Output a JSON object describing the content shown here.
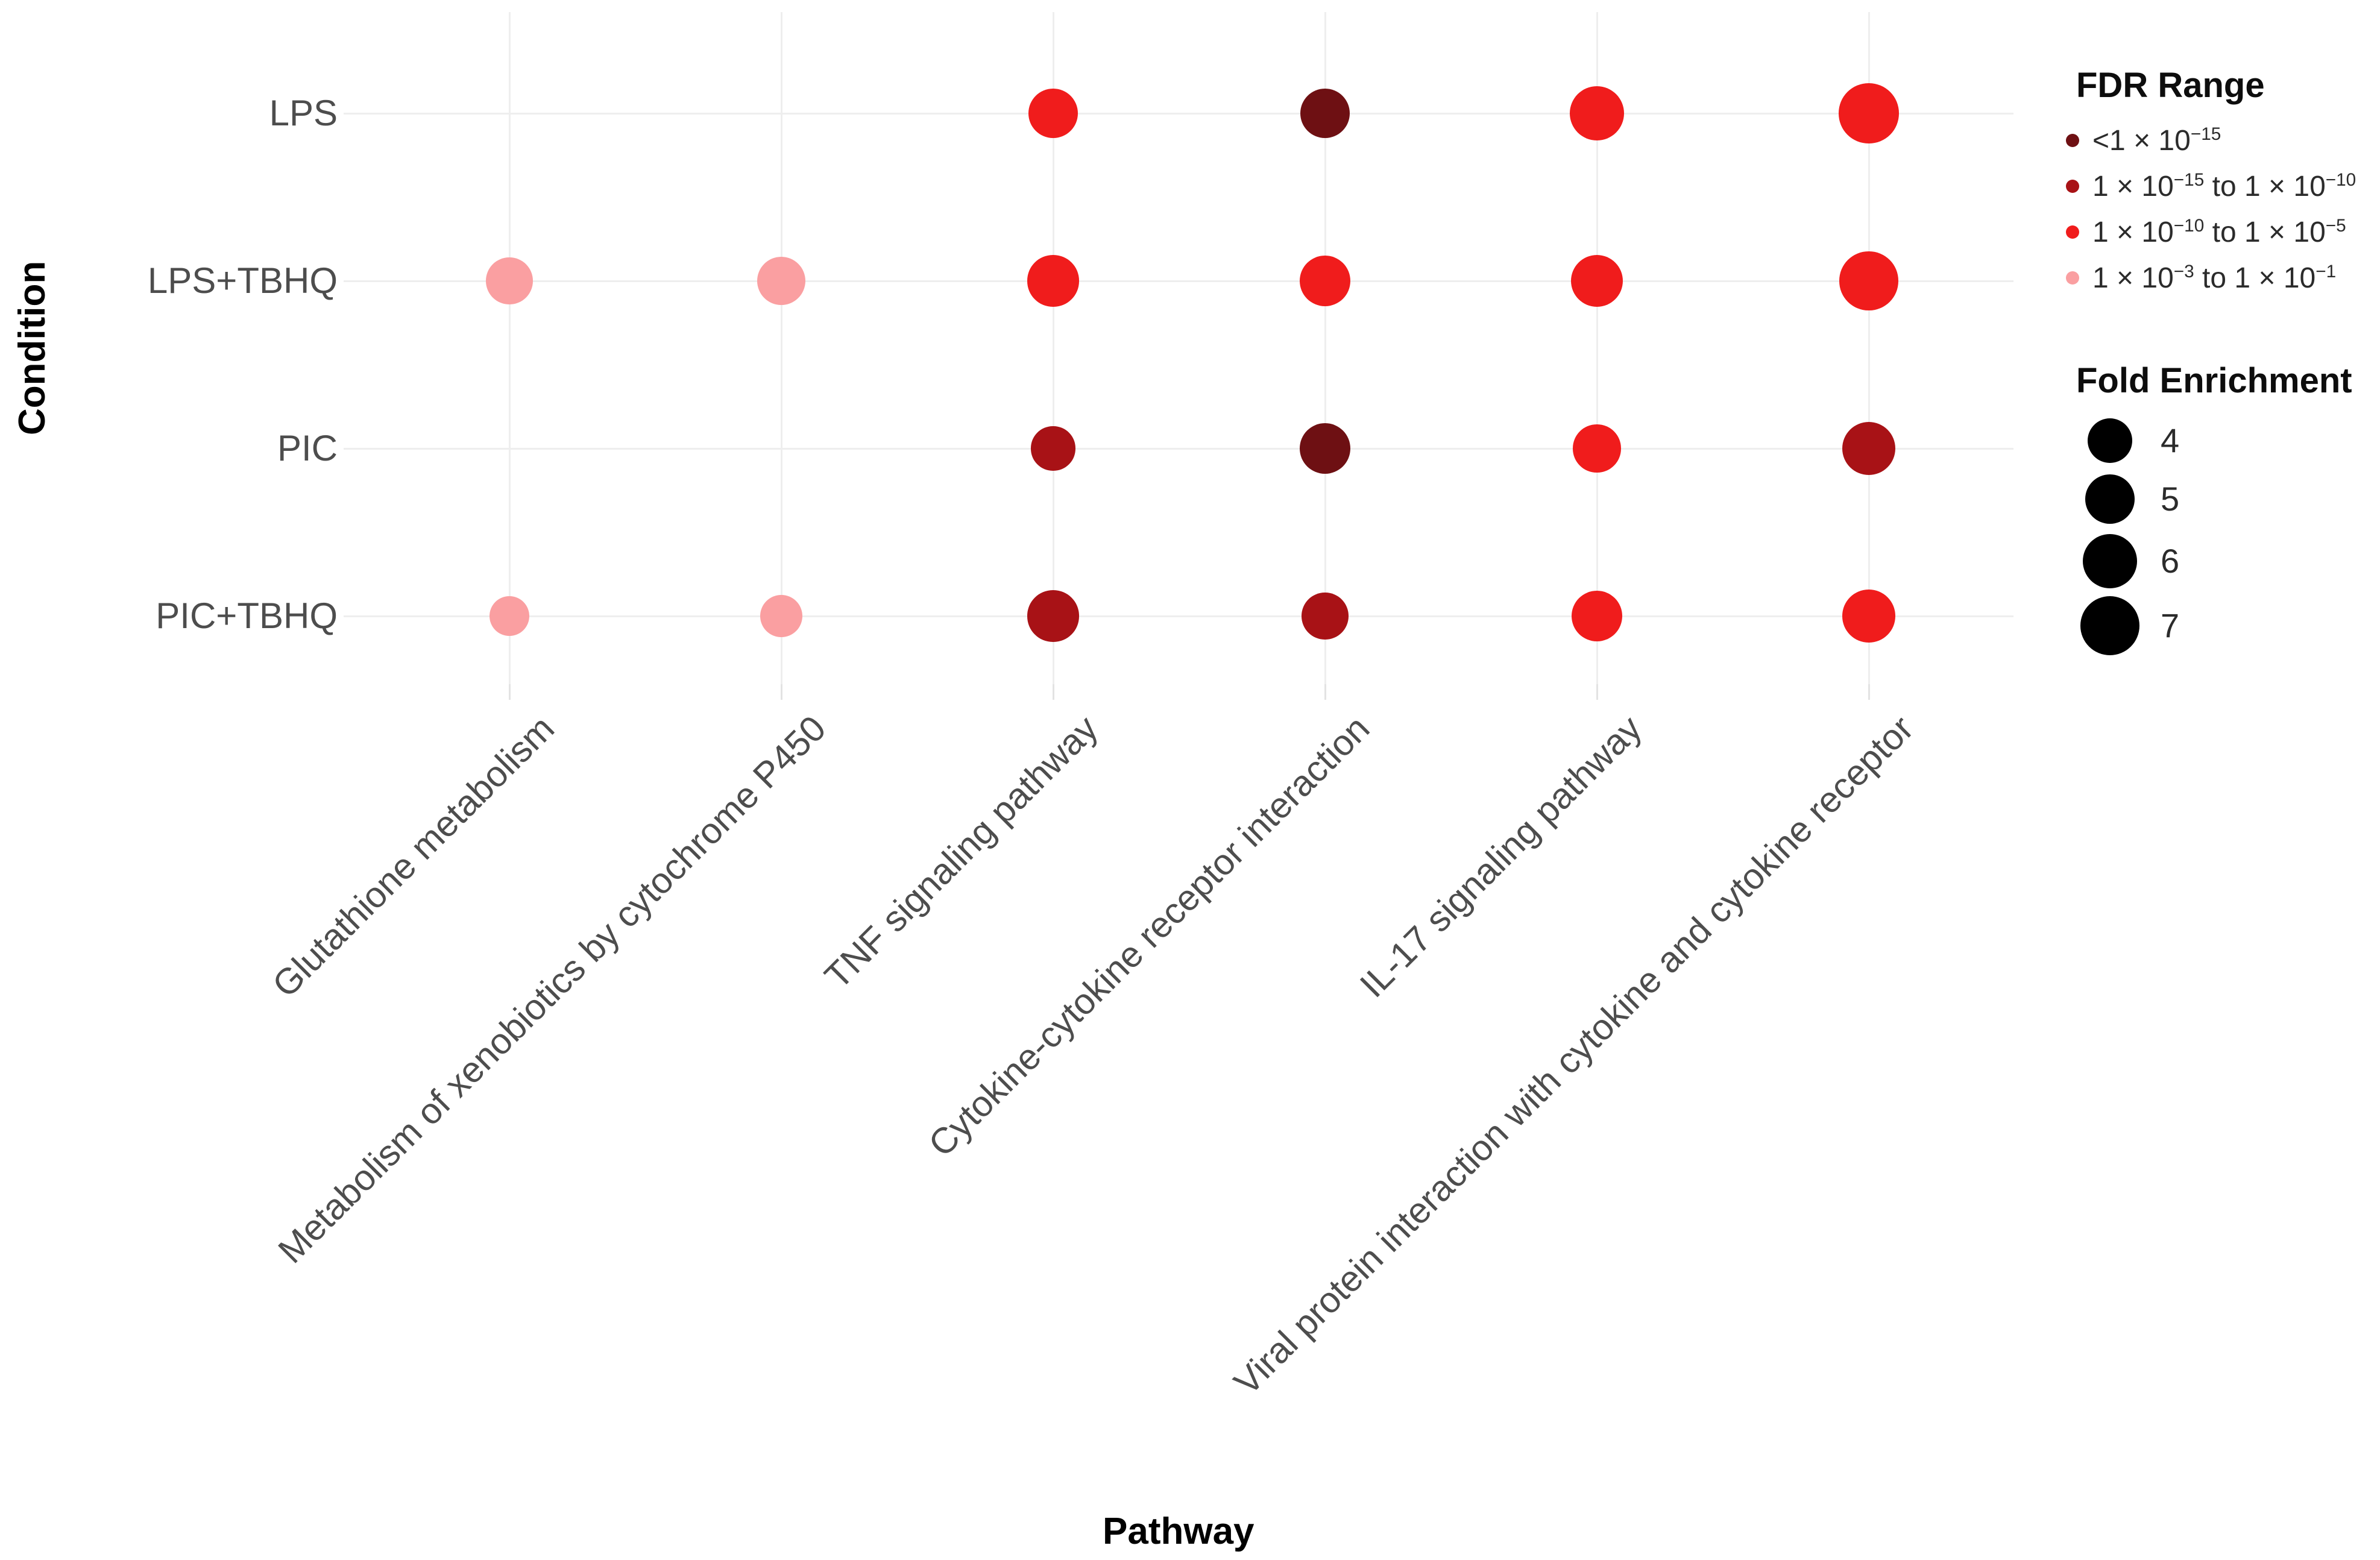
{
  "chart_data": {
    "type": "scatter",
    "subtype": "bubble-dot-plot",
    "title": "",
    "xlabel": "Pathway",
    "ylabel": "Condition",
    "grid": true,
    "legend_position": "right",
    "x_categories": [
      "Glutathione metabolism",
      "Metabolism of xenobiotics by cytochrome P450",
      "TNF signaling pathway",
      "Cytokine-cytokine receptor interaction",
      "IL-17 signaling pathway",
      "Viral protein interaction with cytokine and cytokine receptor"
    ],
    "y_categories": [
      "LPS",
      "LPS+TBHQ",
      "PIC",
      "PIC+TBHQ"
    ],
    "fdr_legend": {
      "title": "FDR Range",
      "items": [
        {
          "key": "<1e-15",
          "text": "<1 × 10",
          "exp": "−15",
          "text2": "",
          "exp2": ""
        },
        {
          "key": "1e-15 to 1e-10",
          "text": "1 × 10",
          "exp": "−15",
          "text2": " to 1 × 10",
          "exp2": "−10"
        },
        {
          "key": "1e-10 to 1e-5",
          "text": "1 × 10",
          "exp": "−10",
          "text2": " to 1 × 10",
          "exp2": "−5"
        },
        {
          "key": "1e-3 to 1e-1",
          "text": "1 × 10",
          "exp": "−3",
          "text2": " to 1 × 10",
          "exp2": "−1"
        }
      ]
    },
    "size_legend": {
      "title": "Fold Enrichment",
      "values": [
        4,
        5,
        6,
        7
      ]
    },
    "color_map": {
      "<1e-15": "#6E1013",
      "1e-15 to 1e-10": "#A81216",
      "1e-10 to 1e-5": "#F01C1C",
      "1e-3 to 1e-1": "#FA9FA1",
      "size_legend_dot": "#000000"
    },
    "points": [
      {
        "condition": "LPS",
        "pathway": "TNF signaling pathway",
        "fdr_range": "1e-10 to 1e-5",
        "fold_enrichment": 4.9
      },
      {
        "condition": "LPS",
        "pathway": "Cytokine-cytokine receptor interaction",
        "fdr_range": "<1e-15",
        "fold_enrichment": 4.9
      },
      {
        "condition": "LPS",
        "pathway": "IL-17 signaling pathway",
        "fdr_range": "1e-10 to 1e-5",
        "fold_enrichment": 5.9
      },
      {
        "condition": "LPS",
        "pathway": "Viral protein interaction with cytokine and cytokine receptor",
        "fdr_range": "1e-10 to 1e-5",
        "fold_enrichment": 7.2
      },
      {
        "condition": "LPS+TBHQ",
        "pathway": "Glutathione metabolism",
        "fdr_range": "1e-3 to 1e-1",
        "fold_enrichment": 4.4
      },
      {
        "condition": "LPS+TBHQ",
        "pathway": "Metabolism of xenobiotics by cytochrome P450",
        "fdr_range": "1e-3 to 1e-1",
        "fold_enrichment": 4.7
      },
      {
        "condition": "LPS+TBHQ",
        "pathway": "TNF signaling pathway",
        "fdr_range": "1e-10 to 1e-5",
        "fold_enrichment": 5.3
      },
      {
        "condition": "LPS+TBHQ",
        "pathway": "Cytokine-cytokine receptor interaction",
        "fdr_range": "1e-10 to 1e-5",
        "fold_enrichment": 5.2
      },
      {
        "condition": "LPS+TBHQ",
        "pathway": "IL-17 signaling pathway",
        "fdr_range": "1e-10 to 1e-5",
        "fold_enrichment": 5.5
      },
      {
        "condition": "LPS+TBHQ",
        "pathway": "Viral protein interaction with cytokine and cytokine receptor",
        "fdr_range": "1e-10 to 1e-5",
        "fold_enrichment": 6.9
      },
      {
        "condition": "PIC",
        "pathway": "TNF signaling pathway",
        "fdr_range": "1e-15 to 1e-10",
        "fold_enrichment": 3.9
      },
      {
        "condition": "PIC",
        "pathway": "Cytokine-cytokine receptor interaction",
        "fdr_range": "<1e-15",
        "fold_enrichment": 5.2
      },
      {
        "condition": "PIC",
        "pathway": "IL-17 signaling pathway",
        "fdr_range": "1e-10 to 1e-5",
        "fold_enrichment": 4.6
      },
      {
        "condition": "PIC",
        "pathway": "Viral protein interaction with cytokine and cytokine receptor",
        "fdr_range": "1e-15 to 1e-10",
        "fold_enrichment": 5.7
      },
      {
        "condition": "PIC+TBHQ",
        "pathway": "Glutathione metabolism",
        "fdr_range": "1e-3 to 1e-1",
        "fold_enrichment": 3.2
      },
      {
        "condition": "PIC+TBHQ",
        "pathway": "Metabolism of xenobiotics by cytochrome P450",
        "fdr_range": "1e-3 to 1e-1",
        "fold_enrichment": 3.6
      },
      {
        "condition": "PIC+TBHQ",
        "pathway": "TNF signaling pathway",
        "fdr_range": "1e-15 to 1e-10",
        "fold_enrichment": 5.3
      },
      {
        "condition": "PIC+TBHQ",
        "pathway": "Cytokine-cytokine receptor interaction",
        "fdr_range": "1e-15 to 1e-10",
        "fold_enrichment": 4.4
      },
      {
        "condition": "PIC+TBHQ",
        "pathway": "IL-17 signaling pathway",
        "fdr_range": "1e-10 to 1e-5",
        "fold_enrichment": 5.2
      },
      {
        "condition": "PIC+TBHQ",
        "pathway": "Viral protein interaction with cytokine and cytokine receptor",
        "fdr_range": "1e-10 to 1e-5",
        "fold_enrichment": 5.6
      }
    ]
  }
}
